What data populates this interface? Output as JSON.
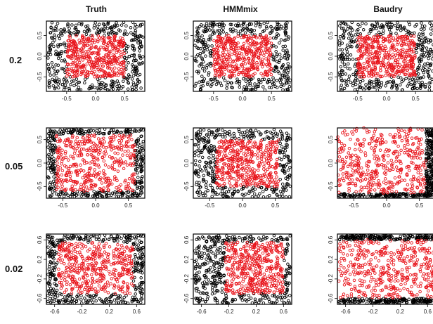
{
  "figure": {
    "columns": [
      "Truth",
      "HMMmix",
      "Baudry"
    ],
    "rows": [
      "0.2",
      "0.05",
      "0.02"
    ]
  },
  "colors": {
    "outer_cluster": "#000000",
    "inner_cluster": "#e8141b"
  },
  "chart_data": {
    "type": "scatter",
    "panels_layout": "3x3 grid; rows = noise level, columns = method",
    "panels": [
      {
        "row": "0.2",
        "col": "Truth",
        "inner_region": [
          -0.5,
          0.5,
          -0.5,
          0.5
        ]
      },
      {
        "row": "0.2",
        "col": "HMMmix",
        "inner_region": [
          -0.5,
          0.5,
          -0.5,
          0.5
        ]
      },
      {
        "row": "0.2",
        "col": "Baudry",
        "inner_region": [
          -0.5,
          0.5,
          -0.5,
          0.5
        ]
      },
      {
        "row": "0.05",
        "col": "Truth",
        "inner_region": [
          -0.6,
          0.6,
          -0.6,
          0.6
        ]
      },
      {
        "row": "0.05",
        "col": "HMMmix",
        "inner_region": [
          -0.4,
          0.55,
          -0.5,
          0.5
        ]
      },
      {
        "row": "0.05",
        "col": "Baudry",
        "inner_region": [
          -0.75,
          0.6,
          -0.65,
          0.75
        ]
      },
      {
        "row": "0.02",
        "col": "Truth",
        "inner_region": [
          -0.55,
          0.55,
          -0.5,
          0.55
        ]
      },
      {
        "row": "0.02",
        "col": "HMMmix",
        "inner_region": [
          -0.25,
          0.6,
          -0.5,
          0.55
        ]
      },
      {
        "row": "0.02",
        "col": "Baudry",
        "inner_region": [
          -0.7,
          0.7,
          -0.6,
          0.6
        ]
      }
    ],
    "x_ticks": [
      [
        "-0.5",
        "0.0",
        "0.5"
      ],
      [
        "-0.5",
        "0.0",
        "0.5"
      ],
      [
        "-0.6",
        "-0.2",
        "0.2",
        "0.6"
      ]
    ],
    "y_ticks": [
      [
        "0.5",
        "0.0",
        "-0.5"
      ],
      [
        "0.5",
        "0.0",
        "-0.5"
      ],
      [
        "0.6",
        "0.2",
        "-0.2",
        "-0.6"
      ]
    ],
    "xlim": [
      [
        -0.85,
        0.85
      ],
      [
        -0.75,
        0.75
      ],
      [
        -0.72,
        0.72
      ]
    ],
    "ylim": [
      [
        -0.85,
        0.85
      ],
      [
        -0.75,
        0.75
      ],
      [
        -0.72,
        0.72
      ]
    ],
    "series": [
      {
        "name": "",
        "color": "#000000",
        "points_per_panel": 380
      },
      {
        "name": "",
        "color": "#e8141b",
        "points_per_panel": 420
      }
    ]
  }
}
